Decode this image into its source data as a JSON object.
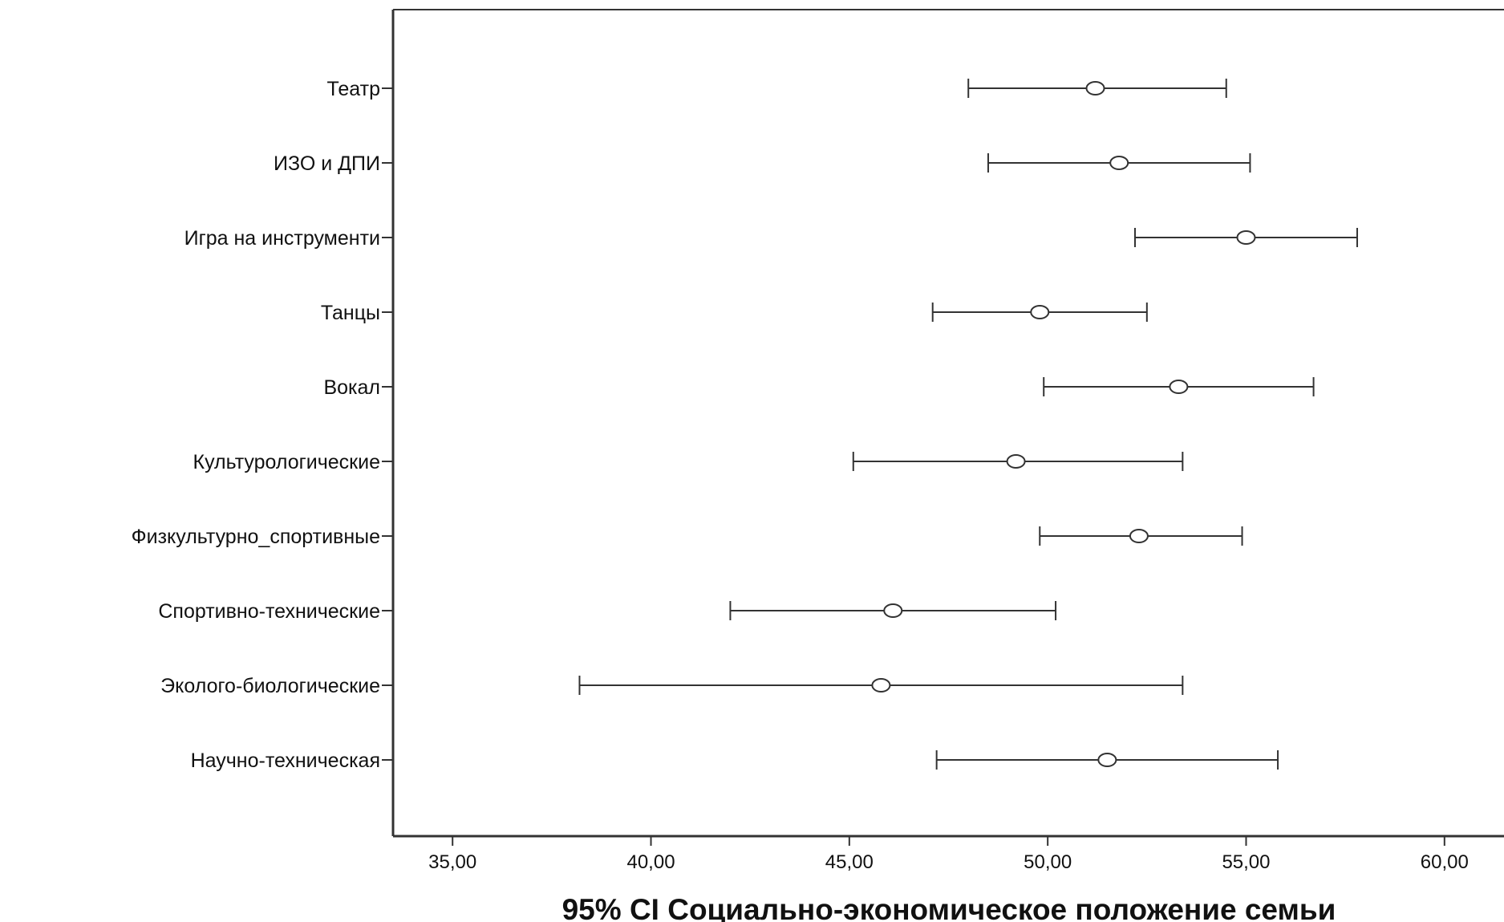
{
  "chart_data": {
    "type": "errorbar",
    "xlabel": "95% CI Социально-экономическое положение семьи",
    "xlim": [
      33.5,
      61.5
    ],
    "xticks": [
      35,
      40,
      45,
      50,
      55,
      60
    ],
    "xtick_labels": [
      "35,00",
      "40,00",
      "45,00",
      "50,00",
      "55,00",
      "60,00"
    ],
    "grid": false,
    "categories": [
      "Театр",
      "ИЗО и ДПИ",
      "Игра на инструменти",
      "Танцы",
      "Вокал",
      "Культурологические",
      "Физкультурно_спортивные",
      "Спортивно-технические",
      "Эколого-биологические",
      "Научно-техническая"
    ],
    "means": [
      51.2,
      51.8,
      55.0,
      49.8,
      53.3,
      49.2,
      52.3,
      46.1,
      45.8,
      51.5
    ],
    "lower": [
      48.0,
      48.5,
      52.2,
      47.1,
      49.9,
      45.1,
      49.8,
      42.0,
      38.2,
      47.2
    ],
    "upper": [
      54.5,
      55.1,
      57.8,
      52.5,
      56.7,
      53.4,
      54.9,
      50.2,
      53.4,
      55.8
    ]
  }
}
